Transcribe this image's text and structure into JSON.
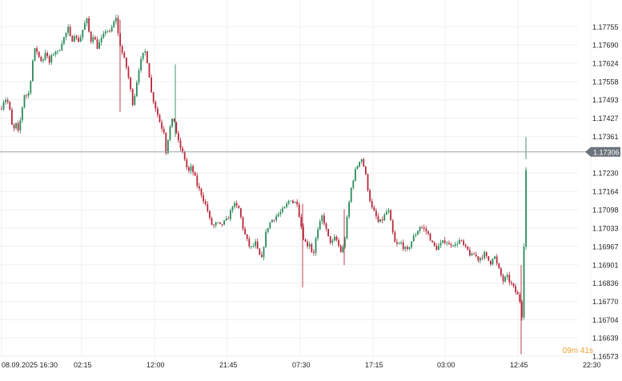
{
  "colors": {
    "background": "#ffffff",
    "grid": "#eef0f3",
    "up": "#2a8a5a",
    "down": "#b8283a",
    "axis_text": "#222222",
    "price_line": "#9aa0a8",
    "price_badge": "#6c737d",
    "countdown": "#f0a030"
  },
  "countdown": {
    "minutes": "09m",
    "seconds": "41s"
  },
  "chart_data": {
    "type": "candlestick",
    "title": "",
    "xlabel": "",
    "ylabel": "",
    "ylim": [
      1.16573,
      1.17805
    ],
    "x_tick_labels": [
      "08.09.2025  16:30",
      "02:15",
      "12:00",
      "21:45",
      "07:30",
      "17:15",
      "03:00",
      "12:45",
      "22:30"
    ],
    "y_tick_labels": [
      "1.17755",
      "1.17690",
      "1.17624",
      "1.17558",
      "1.17493",
      "1.17427",
      "1.17361",
      "1.17230",
      "1.17164",
      "1.17098",
      "1.17033",
      "1.16967",
      "1.16901",
      "1.16836",
      "1.16770",
      "1.16704",
      "1.16639",
      "1.16573"
    ],
    "current_price": "1.17306",
    "grid": true,
    "close_path": [
      [
        0,
        1.1746
      ],
      [
        5,
        1.175
      ],
      [
        10,
        1.1748
      ],
      [
        14,
        1.174
      ],
      [
        18,
        1.1738
      ],
      [
        20,
        1.1742
      ],
      [
        22,
        1.1737
      ],
      [
        26,
        1.1745
      ],
      [
        30,
        1.1752
      ],
      [
        34,
        1.175
      ],
      [
        38,
        1.1758
      ],
      [
        41,
        1.1766
      ],
      [
        44,
        1.1768
      ],
      [
        47,
        1.1765
      ],
      [
        52,
        1.1763
      ],
      [
        56,
        1.1767
      ],
      [
        60,
        1.1762
      ],
      [
        64,
        1.1765
      ],
      [
        68,
        1.1767
      ],
      [
        72,
        1.1766
      ],
      [
        76,
        1.177
      ],
      [
        80,
        1.1772
      ],
      [
        84,
        1.1775
      ],
      [
        88,
        1.177
      ],
      [
        92,
        1.1773
      ],
      [
        96,
        1.177
      ],
      [
        100,
        1.1772
      ],
      [
        104,
        1.1776
      ],
      [
        108,
        1.1778
      ],
      [
        112,
        1.177
      ],
      [
        116,
        1.1773
      ],
      [
        120,
        1.1768
      ],
      [
        124,
        1.177
      ],
      [
        128,
        1.1772
      ],
      [
        132,
        1.1775
      ],
      [
        136,
        1.1773
      ],
      [
        140,
        1.1776
      ],
      [
        144,
        1.1779
      ],
      [
        147,
        1.1772
      ],
      [
        150,
        1.1768
      ],
      [
        154,
        1.1764
      ],
      [
        158,
        1.176
      ],
      [
        162,
        1.1753
      ],
      [
        165,
        1.1748
      ],
      [
        168,
        1.1752
      ],
      [
        172,
        1.176
      ],
      [
        176,
        1.1764
      ],
      [
        180,
        1.1767
      ],
      [
        184,
        1.1762
      ],
      [
        188,
        1.1752
      ],
      [
        192,
        1.1748
      ],
      [
        196,
        1.1744
      ],
      [
        200,
        1.174
      ],
      [
        204,
        1.1738
      ],
      [
        206,
        1.173
      ],
      [
        208,
        1.1734
      ],
      [
        212,
        1.174
      ],
      [
        216,
        1.1743
      ],
      [
        219,
        1.1738
      ],
      [
        222,
        1.1734
      ],
      [
        226,
        1.1731
      ],
      [
        230,
        1.1728
      ],
      [
        234,
        1.1723
      ],
      [
        238,
        1.1725
      ],
      [
        242,
        1.1722
      ],
      [
        246,
        1.1718
      ],
      [
        250,
        1.1716
      ],
      [
        254,
        1.1713
      ],
      [
        258,
        1.171
      ],
      [
        262,
        1.1705
      ],
      [
        266,
        1.1704
      ],
      [
        270,
        1.1705
      ],
      [
        274,
        1.1704
      ],
      [
        278,
        1.1705
      ],
      [
        282,
        1.1706
      ],
      [
        286,
        1.1708
      ],
      [
        290,
        1.1712
      ],
      [
        294,
        1.1711
      ],
      [
        298,
        1.171
      ],
      [
        302,
        1.1704
      ],
      [
        306,
        1.17
      ],
      [
        310,
        1.1697
      ],
      [
        314,
        1.1696
      ],
      [
        318,
        1.1698
      ],
      [
        322,
        1.1694
      ],
      [
        326,
        1.1692
      ],
      [
        330,
        1.17
      ],
      [
        334,
        1.1704
      ],
      [
        338,
        1.1706
      ],
      [
        342,
        1.1707
      ],
      [
        346,
        1.1708
      ],
      [
        350,
        1.1709
      ],
      [
        354,
        1.171
      ],
      [
        358,
        1.1712
      ],
      [
        362,
        1.1714
      ],
      [
        366,
        1.1712
      ],
      [
        370,
        1.1713
      ],
      [
        374,
        1.1706
      ],
      [
        378,
        1.17
      ],
      [
        382,
        1.1697
      ],
      [
        386,
        1.1698
      ],
      [
        390,
        1.1693
      ],
      [
        394,
        1.17
      ],
      [
        398,
        1.1704
      ],
      [
        402,
        1.1708
      ],
      [
        406,
        1.1703
      ],
      [
        410,
        1.1699
      ],
      [
        414,
        1.1698
      ],
      [
        418,
        1.17
      ],
      [
        422,
        1.1697
      ],
      [
        426,
        1.1694
      ],
      [
        430,
        1.17
      ],
      [
        434,
        1.171
      ],
      [
        438,
        1.1718
      ],
      [
        442,
        1.1723
      ],
      [
        446,
        1.1726
      ],
      [
        450,
        1.1729
      ],
      [
        453,
        1.1726
      ],
      [
        456,
        1.1722
      ],
      [
        460,
        1.1715
      ],
      [
        464,
        1.171
      ],
      [
        468,
        1.1708
      ],
      [
        472,
        1.1705
      ],
      [
        476,
        1.1706
      ],
      [
        480,
        1.1708
      ],
      [
        484,
        1.171
      ],
      [
        488,
        1.1704
      ],
      [
        492,
        1.1698
      ],
      [
        496,
        1.1697
      ],
      [
        500,
        1.1698
      ],
      [
        504,
        1.1696
      ],
      [
        508,
        1.1695
      ],
      [
        512,
        1.1698
      ],
      [
        516,
        1.17
      ],
      [
        520,
        1.1702
      ],
      [
        524,
        1.1704
      ],
      [
        528,
        1.1703
      ],
      [
        532,
        1.1702
      ],
      [
        536,
        1.17
      ],
      [
        540,
        1.1697
      ],
      [
        544,
        1.1696
      ],
      [
        548,
        1.1697
      ],
      [
        552,
        1.1698
      ],
      [
        556,
        1.1699
      ],
      [
        560,
        1.1697
      ],
      [
        564,
        1.1698
      ],
      [
        568,
        1.1697
      ],
      [
        572,
        1.1699
      ],
      [
        576,
        1.1698
      ],
      [
        580,
        1.1696
      ],
      [
        584,
        1.1695
      ],
      [
        588,
        1.1693
      ],
      [
        592,
        1.1694
      ],
      [
        596,
        1.1692
      ],
      [
        600,
        1.1693
      ],
      [
        604,
        1.1694
      ],
      [
        608,
        1.1692
      ],
      [
        612,
        1.1691
      ],
      [
        616,
        1.1694
      ],
      [
        620,
        1.169
      ],
      [
        624,
        1.1687
      ],
      [
        628,
        1.1684
      ],
      [
        632,
        1.1686
      ],
      [
        636,
        1.1684
      ],
      [
        640,
        1.1682
      ],
      [
        644,
        1.168
      ],
      [
        648,
        1.1678
      ],
      [
        651,
        1.1672
      ],
      [
        653,
        1.169
      ],
      [
        655,
        1.1715
      ],
      [
        657,
        1.173
      ]
    ]
  }
}
